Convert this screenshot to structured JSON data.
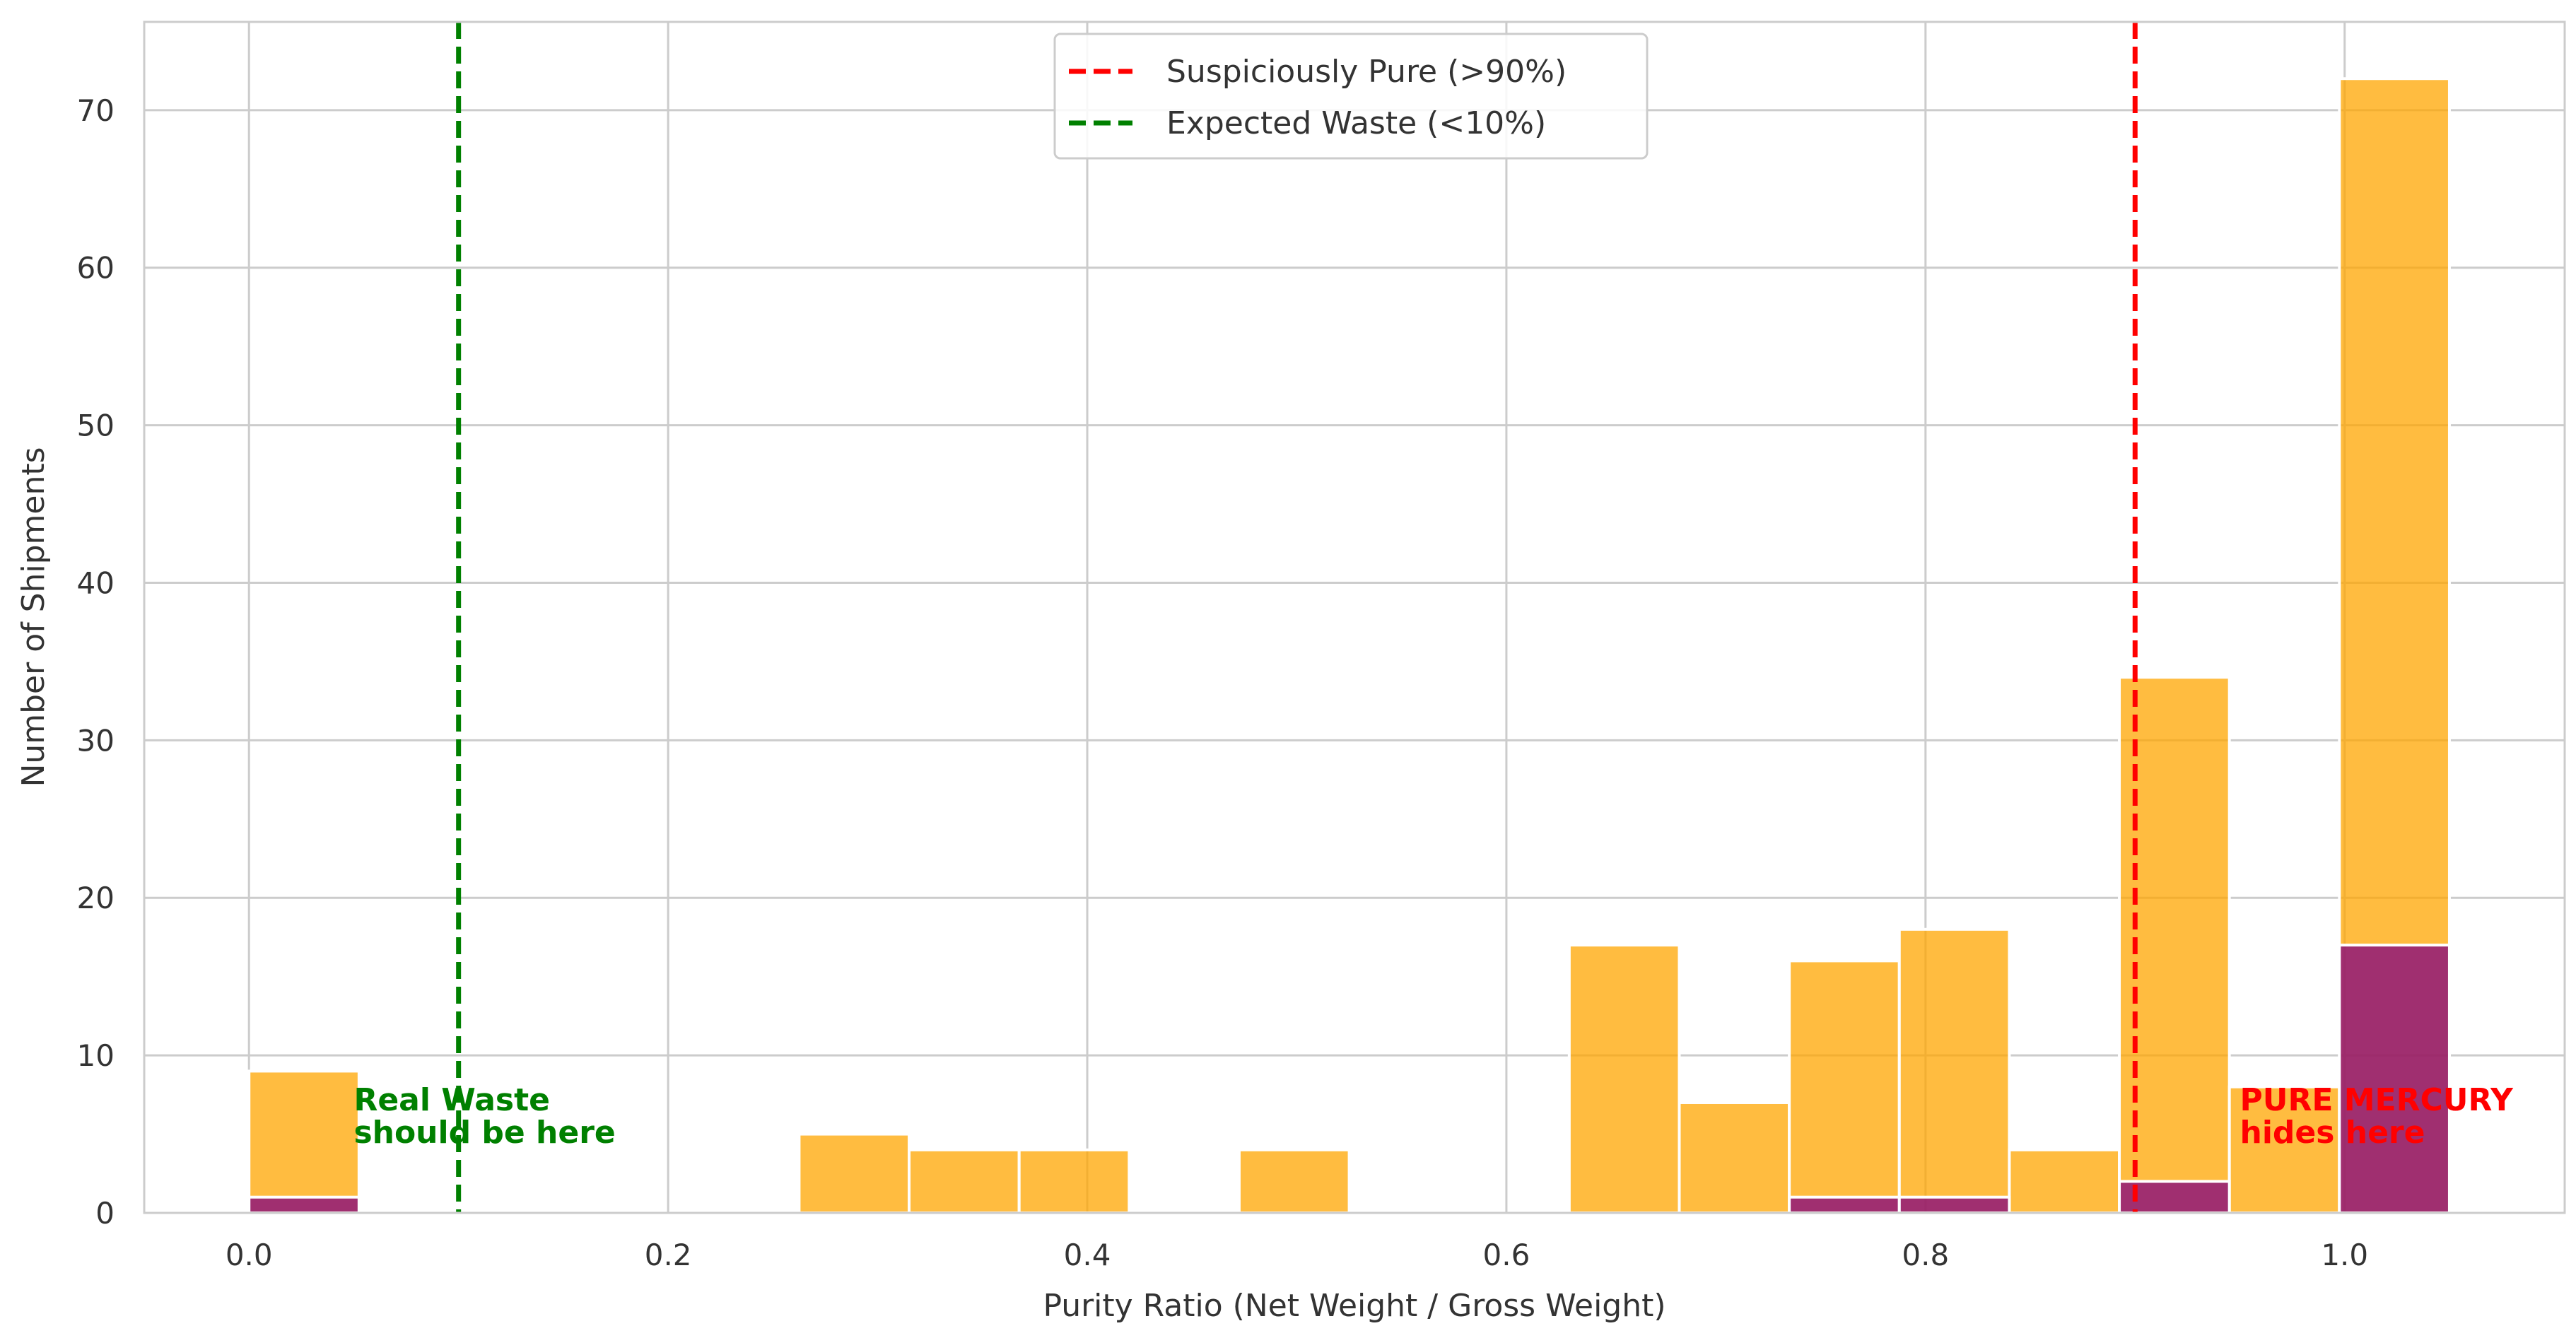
{
  "chart_data": {
    "type": "bar",
    "title": "",
    "xlabel": "Purity Ratio (Net Weight / Gross Weight)",
    "ylabel": "Number of Shipments",
    "xlim": [
      -0.05,
      1.105
    ],
    "ylim": [
      0,
      75.6
    ],
    "grid": true,
    "x_ticks": [
      0.0,
      0.2,
      0.4,
      0.6,
      0.8,
      1.0
    ],
    "x_tick_labels": [
      "0.0",
      "0.2",
      "0.4",
      "0.6",
      "0.8",
      "1.0"
    ],
    "y_ticks": [
      0,
      10,
      20,
      30,
      40,
      50,
      60,
      70
    ],
    "y_tick_labels": [
      "0",
      "10",
      "20",
      "30",
      "40",
      "50",
      "60",
      "70"
    ],
    "bin_width": 0.0525,
    "series": [
      {
        "color": "#FFA500",
        "opacity": 0.75,
        "bins": [
          {
            "x0": 0.0,
            "x1": 0.0525,
            "count": 9
          },
          {
            "x0": 0.2625,
            "x1": 0.315,
            "count": 5
          },
          {
            "x0": 0.315,
            "x1": 0.3675,
            "count": 4
          },
          {
            "x0": 0.3675,
            "x1": 0.42,
            "count": 4
          },
          {
            "x0": 0.4725,
            "x1": 0.525,
            "count": 4
          },
          {
            "x0": 0.63,
            "x1": 0.6825,
            "count": 17
          },
          {
            "x0": 0.6825,
            "x1": 0.735,
            "count": 7
          },
          {
            "x0": 0.735,
            "x1": 0.7875,
            "count": 16
          },
          {
            "x0": 0.7875,
            "x1": 0.84,
            "count": 18
          },
          {
            "x0": 0.84,
            "x1": 0.8925,
            "count": 4
          },
          {
            "x0": 0.8925,
            "x1": 0.945,
            "count": 34
          },
          {
            "x0": 0.945,
            "x1": 0.9975,
            "count": 8
          },
          {
            "x0": 0.9975,
            "x1": 1.05,
            "count": 72
          }
        ]
      },
      {
        "color": "#800080",
        "opacity": 0.75,
        "bins": [
          {
            "x0": 0.0,
            "x1": 0.0525,
            "count": 1
          },
          {
            "x0": 0.735,
            "x1": 0.7875,
            "count": 1
          },
          {
            "x0": 0.7875,
            "x1": 0.84,
            "count": 1
          },
          {
            "x0": 0.8925,
            "x1": 0.945,
            "count": 2
          },
          {
            "x0": 0.9975,
            "x1": 1.05,
            "count": 17
          }
        ]
      }
    ],
    "reference_lines": [
      {
        "x": 0.9,
        "color": "#FF0000",
        "style": "dashed",
        "label": "Suspiciously Pure (>90%)"
      },
      {
        "x": 0.1,
        "color": "#008000",
        "style": "dashed",
        "label": "Expected Waste (<10%)"
      }
    ],
    "legend_position": "top-center",
    "annotations": [
      {
        "lines": [
          "Real Waste",
          "should be here"
        ],
        "x": 0.05,
        "y": 6.5,
        "color": "#008000"
      },
      {
        "lines": [
          "PURE MERCURY",
          "hides here"
        ],
        "x": 0.95,
        "y": 6.5,
        "color": "#FF0000"
      }
    ]
  }
}
